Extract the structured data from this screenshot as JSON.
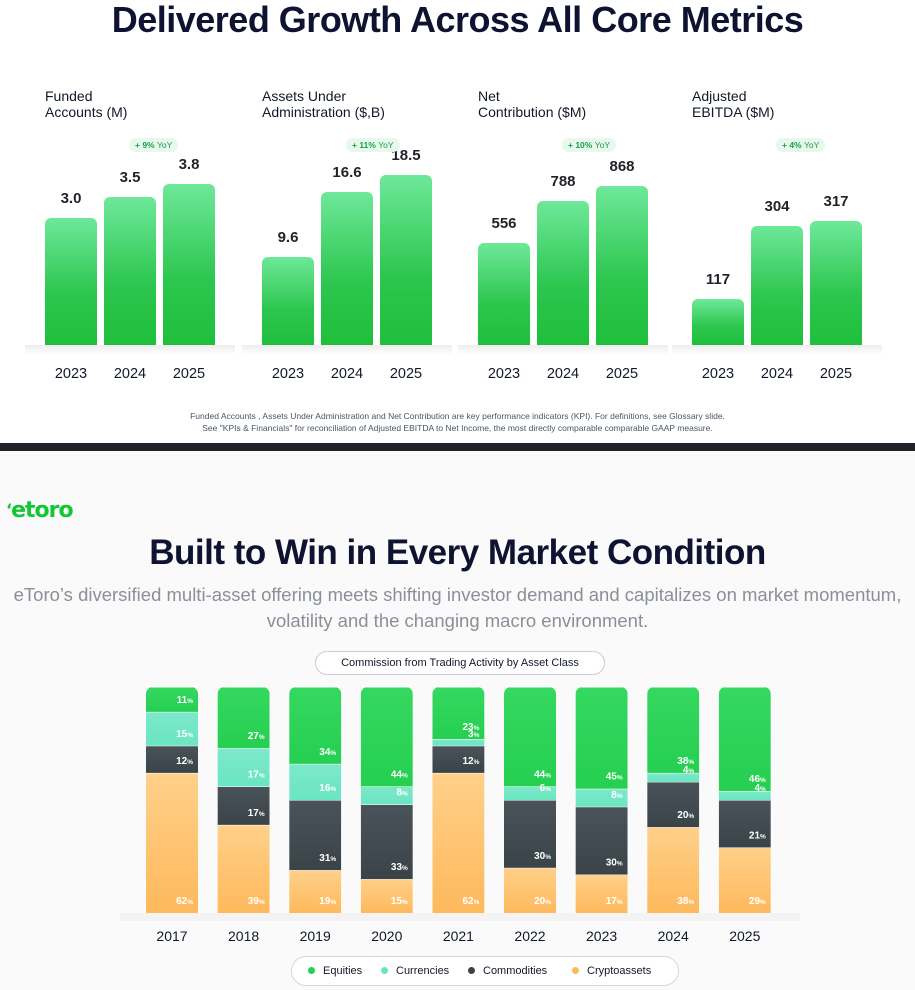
{
  "header": {
    "title": "Delivered Growth Across All Core Metrics"
  },
  "kpis": [
    {
      "label": [
        "Funded",
        "Accounts (M)"
      ],
      "yoy": "+ 9%",
      "yoy_suffix": "YoY",
      "years": [
        "2023",
        "2024",
        "2025"
      ],
      "values": [
        3.0,
        3.5,
        3.8
      ],
      "display": [
        "3.0",
        "3.5",
        "3.8"
      ]
    },
    {
      "label": [
        "Assets Under",
        "Administration ($,B)"
      ],
      "yoy": "+ 11%",
      "yoy_suffix": "YoY",
      "years": [
        "2023",
        "2024",
        "2025"
      ],
      "values": [
        9.6,
        16.6,
        18.5
      ],
      "display": [
        "9.6",
        "16.6",
        "18.5"
      ]
    },
    {
      "label": [
        "Net",
        "Contribution ($M)"
      ],
      "yoy": "+ 10%",
      "yoy_suffix": "YoY",
      "years": [
        "2023",
        "2024",
        "2025"
      ],
      "values": [
        556,
        788,
        868
      ],
      "display": [
        "556",
        "788",
        "868"
      ]
    },
    {
      "label": [
        "Adjusted",
        "EBITDA ($M)"
      ],
      "yoy": "+ 4%",
      "yoy_suffix": "YoY",
      "years": [
        "2023",
        "2024",
        "2025"
      ],
      "values": [
        117,
        304,
        317
      ],
      "display": [
        "117",
        "304",
        "317"
      ]
    }
  ],
  "footnote": [
    "Funded Accounts , Assets Under Administration and Net Contribution are key performance indicators (KPI). For definitions, see Glossary slide.",
    "See \"KPIs & Financials\" for reconciliation of Adjusted EBITDA to Net Income, the most directly comparable comparable GAAP measure."
  ],
  "section2": {
    "logo": "etoro",
    "title": "Built to Win in Every Market Condition",
    "subtitle": [
      "eToro’s diversified multi-asset offering meets shifting investor demand and capitalizes on market momentum,",
      "volatility and the changing macro environment."
    ],
    "chart_title": "Commission from Trading Activity by Asset Class"
  },
  "colors": {
    "equities": "#25cf50",
    "currencies": "#6be5c1",
    "commodities": "#3a4348",
    "crypto": "#fdb95c"
  },
  "chart_data": [
    {
      "type": "bar",
      "title": "Funded Accounts (M)",
      "categories": [
        "2023",
        "2024",
        "2025"
      ],
      "values": [
        3.0,
        3.5,
        3.8
      ],
      "annotation": "+ 9% YoY"
    },
    {
      "type": "bar",
      "title": "Assets Under Administration ($,B)",
      "categories": [
        "2023",
        "2024",
        "2025"
      ],
      "values": [
        9.6,
        16.6,
        18.5
      ],
      "annotation": "+ 11% YoY"
    },
    {
      "type": "bar",
      "title": "Net Contribution ($M)",
      "categories": [
        "2023",
        "2024",
        "2025"
      ],
      "values": [
        556,
        788,
        868
      ],
      "annotation": "+ 10% YoY"
    },
    {
      "type": "bar",
      "title": "Adjusted EBITDA ($M)",
      "categories": [
        "2023",
        "2024",
        "2025"
      ],
      "values": [
        117,
        304,
        317
      ],
      "annotation": "+ 4% YoY"
    },
    {
      "type": "stacked-bar-100",
      "title": "Commission from Trading Activity by Asset Class",
      "categories": [
        "2017",
        "2018",
        "2019",
        "2020",
        "2021",
        "2022",
        "2023",
        "2024",
        "2025"
      ],
      "unit": "%",
      "series": [
        {
          "name": "Cryptoassets",
          "values": [
            62,
            39,
            19,
            15,
            62,
            20,
            17,
            38,
            29
          ]
        },
        {
          "name": "Commodities",
          "values": [
            12,
            17,
            31,
            33,
            12,
            30,
            30,
            20,
            21
          ]
        },
        {
          "name": "Currencies",
          "values": [
            15,
            17,
            16,
            8,
            3,
            6,
            8,
            4,
            4
          ]
        },
        {
          "name": "Equities",
          "values": [
            11,
            27,
            34,
            44,
            23,
            44,
            45,
            38,
            46
          ]
        }
      ],
      "legend": [
        "Equities",
        "Currencies",
        "Commodities",
        "Cryptoassets"
      ],
      "legend_position": "bottom"
    }
  ]
}
